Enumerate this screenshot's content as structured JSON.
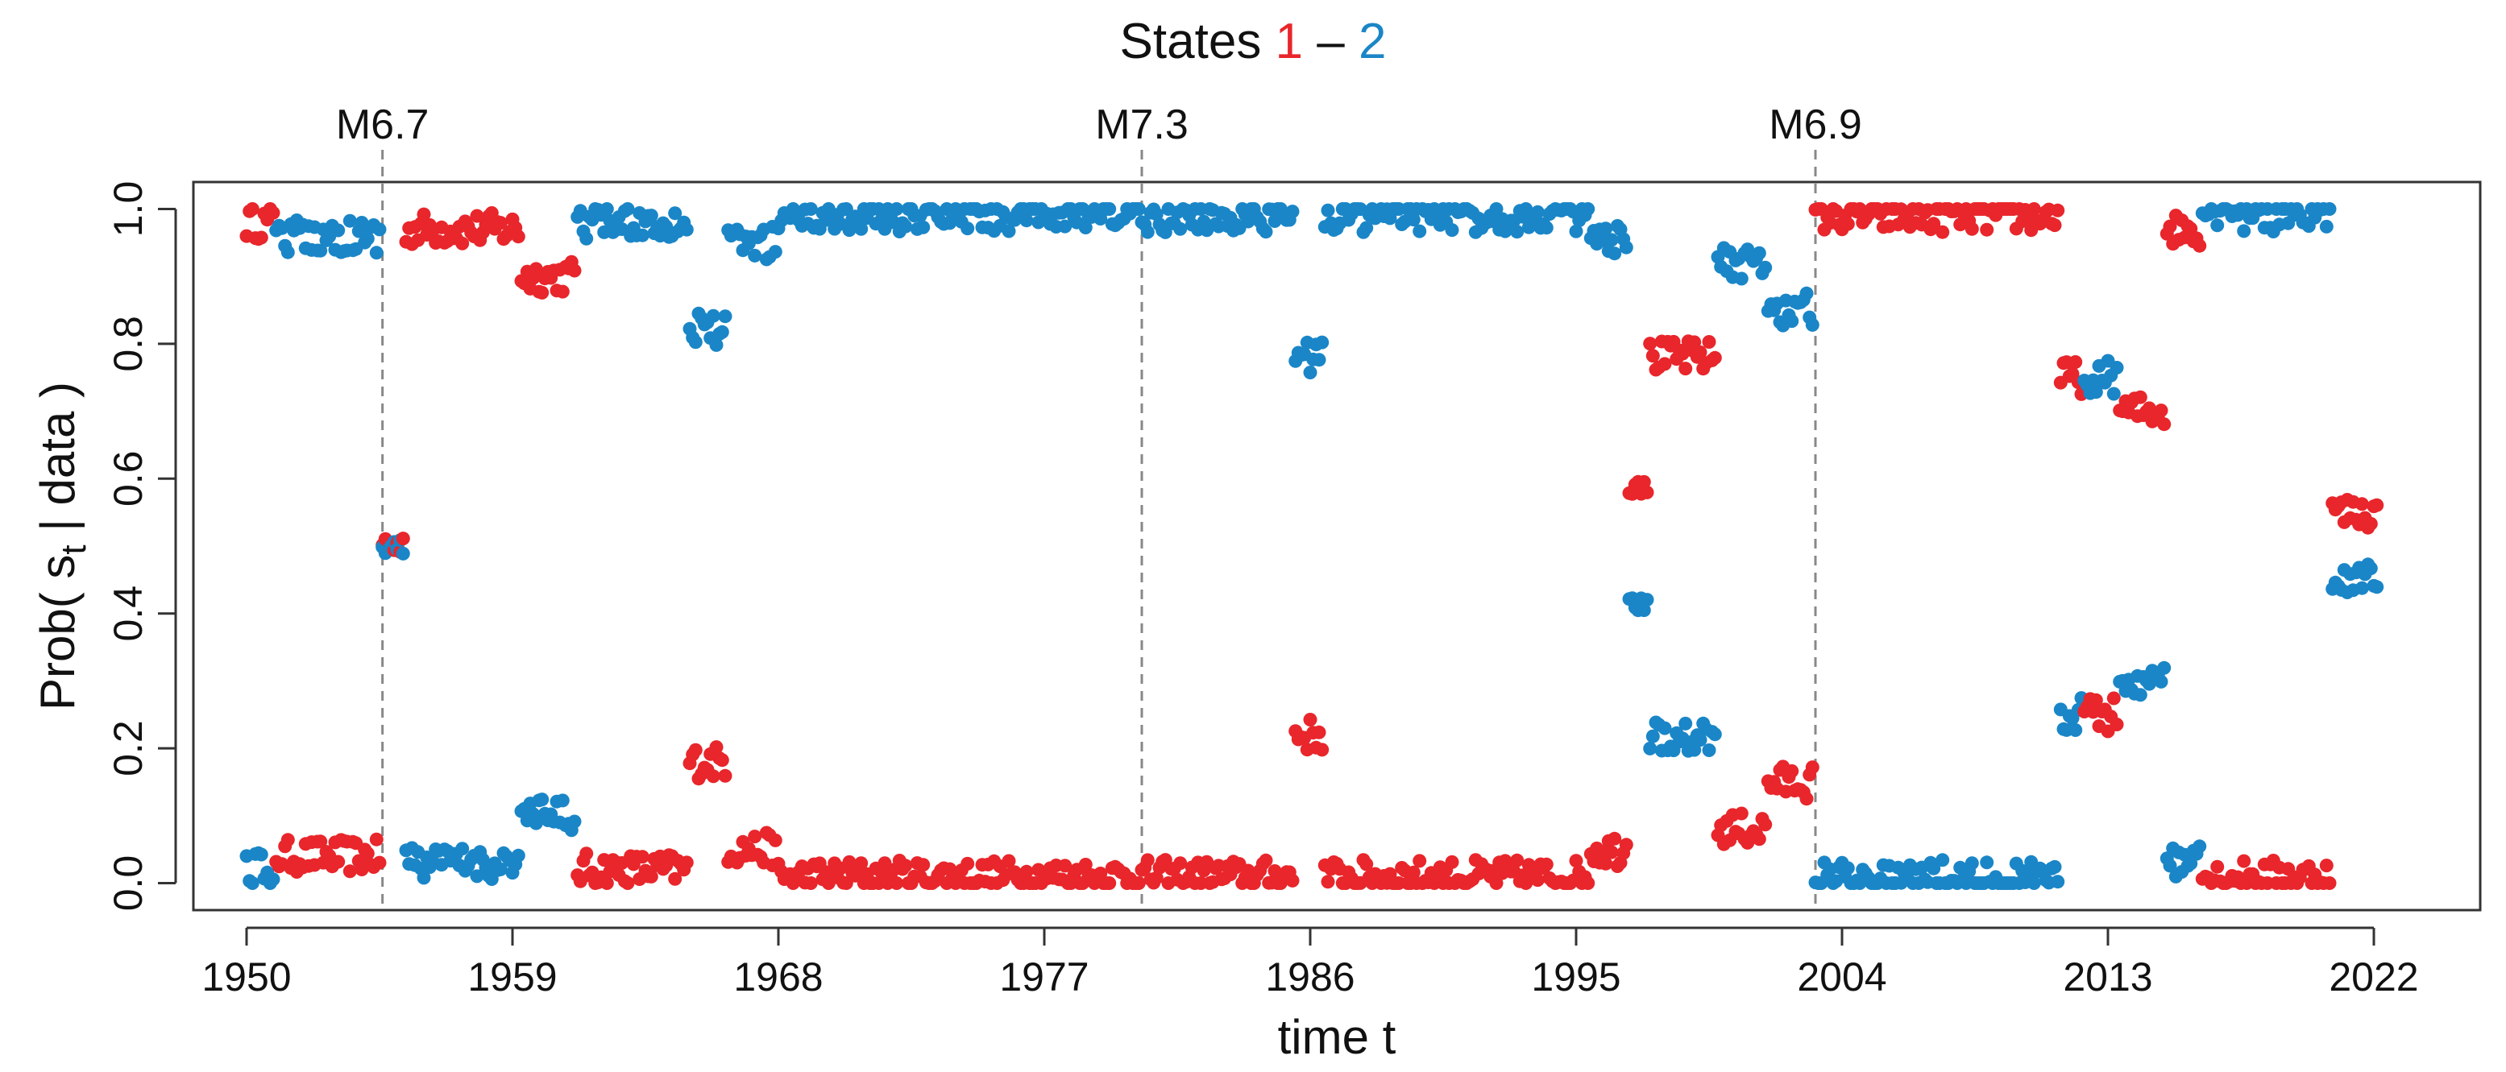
{
  "chart_data": {
    "type": "scatter",
    "title": {
      "prefix": "States ",
      "state1": "1",
      "separator": " – ",
      "state2": "2"
    },
    "xlabel": "time t",
    "ylabel": {
      "prefix": "Prob( s",
      "subscript": "t",
      "suffix": " | data )"
    },
    "xlim": [
      1948.2,
      2025.6
    ],
    "ylim": [
      -0.04,
      1.04
    ],
    "x_ticks": [
      1950,
      1959,
      1968,
      1977,
      1986,
      1995,
      2004,
      2013,
      2022
    ],
    "y_ticks": [
      0.0,
      0.2,
      0.4,
      0.6,
      0.8,
      1.0
    ],
    "y_tick_labels": [
      "0.0",
      "0.2",
      "0.4",
      "0.6",
      "0.8",
      "1.0"
    ],
    "colors": {
      "state1": "#e8262b",
      "state2": "#1a86c7",
      "event_line": "#888888",
      "axis": "#333333",
      "text": "#111111"
    },
    "events": [
      {
        "x": 1954.6,
        "label": "M6.7"
      },
      {
        "x": 1980.3,
        "label": "M7.3"
      },
      {
        "x": 2003.1,
        "label": "M6.9"
      }
    ],
    "regimes": [
      {
        "start": 1950.0,
        "end": 1951.0,
        "p1": 0.98
      },
      {
        "start": 1951.0,
        "end": 1954.6,
        "p1": 0.04
      },
      {
        "start": 1954.6,
        "end": 1955.4,
        "p1": 0.5
      },
      {
        "start": 1955.4,
        "end": 1959.3,
        "p1": 0.97
      },
      {
        "start": 1959.3,
        "end": 1961.2,
        "p1": 0.9
      },
      {
        "start": 1961.2,
        "end": 1965.0,
        "p1": 0.02
      },
      {
        "start": 1965.0,
        "end": 1966.3,
        "p1": 0.18
      },
      {
        "start": 1966.3,
        "end": 1968.0,
        "p1": 0.05
      },
      {
        "start": 1968.0,
        "end": 1985.5,
        "p1": 0.01
      },
      {
        "start": 1985.5,
        "end": 1986.5,
        "p1": 0.22
      },
      {
        "start": 1986.5,
        "end": 1995.5,
        "p1": 0.01
      },
      {
        "start": 1995.5,
        "end": 1996.8,
        "p1": 0.05
      },
      {
        "start": 1996.8,
        "end": 1997.5,
        "p1": 0.6
      },
      {
        "start": 1997.5,
        "end": 1999.8,
        "p1": 0.78
      },
      {
        "start": 1999.8,
        "end": 2001.5,
        "p1": 0.08
      },
      {
        "start": 2001.5,
        "end": 2003.1,
        "p1": 0.15
      },
      {
        "start": 2003.1,
        "end": 2011.4,
        "p1": 0.99
      },
      {
        "start": 2011.4,
        "end": 2012.2,
        "p1": 0.75
      },
      {
        "start": 2012.2,
        "end": 2013.4,
        "p1": 0.25
      },
      {
        "start": 2013.4,
        "end": 2015.0,
        "p1": 0.7
      },
      {
        "start": 2015.0,
        "end": 2016.2,
        "p1": 0.97
      },
      {
        "start": 2016.2,
        "end": 2020.6,
        "p1": 0.01
      },
      {
        "start": 2020.6,
        "end": 2022.2,
        "p1": 0.55
      }
    ],
    "sample_step": 0.1
  }
}
